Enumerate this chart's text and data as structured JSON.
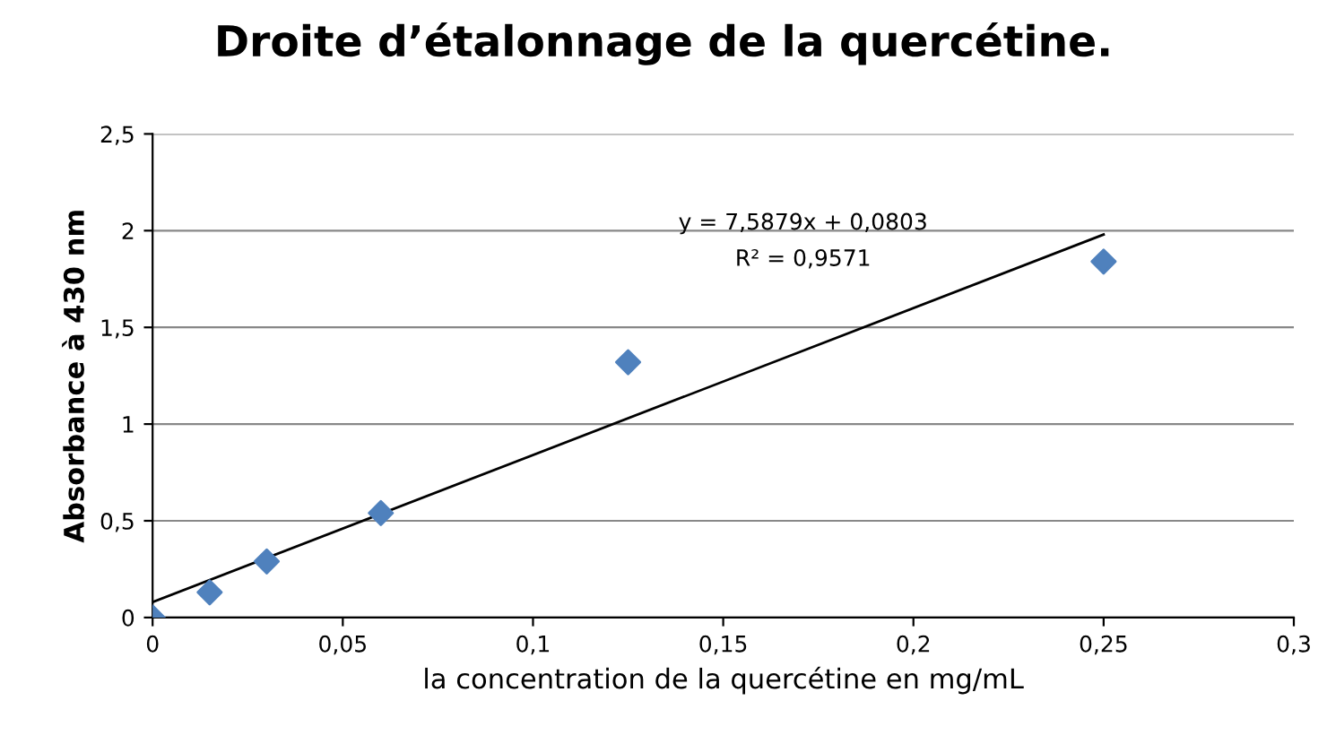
{
  "chart_data": {
    "type": "scatter",
    "title": "Droite d’étalonnage de la quercétine.",
    "xlabel": "la concentration de la quercétine en mg/mL",
    "ylabel": "Absorbance à 430 nm",
    "series": [
      {
        "color": "#4f81bd",
        "marker": "diamond",
        "x": [
          0,
          0.015,
          0.03,
          0.06,
          0.125,
          0.25
        ],
        "values": [
          0,
          0.13,
          0.29,
          0.54,
          1.32,
          1.84
        ]
      },
      {
        "type": "line",
        "color": "#000000",
        "marker": "none",
        "x": [
          0,
          0.25
        ],
        "values": [
          0.08,
          1.98
        ]
      }
    ],
    "annotations": [
      "y = 7,5879x + 0,0803",
      "R² = 0,9571"
    ],
    "xlim": [
      0,
      0.3
    ],
    "ylim": [
      0,
      2.5
    ],
    "xticks": [
      0,
      {
        "value": 0.05,
        "label": "0,05"
      },
      {
        "value": 0.1,
        "label": "0,1"
      },
      {
        "value": 0.15,
        "label": "0,15"
      },
      {
        "value": 0.2,
        "label": "0,2"
      },
      {
        "value": 0.25,
        "label": "0,25"
      },
      {
        "value": 0.3,
        "label": "0,3"
      }
    ],
    "yticks": [
      0,
      {
        "value": 0.5,
        "label": "0,5"
      },
      1,
      {
        "value": 1.5,
        "label": "1,5"
      },
      2,
      {
        "value": 2.5,
        "label": "2,5"
      }
    ],
    "grid": "y",
    "legend": false
  }
}
